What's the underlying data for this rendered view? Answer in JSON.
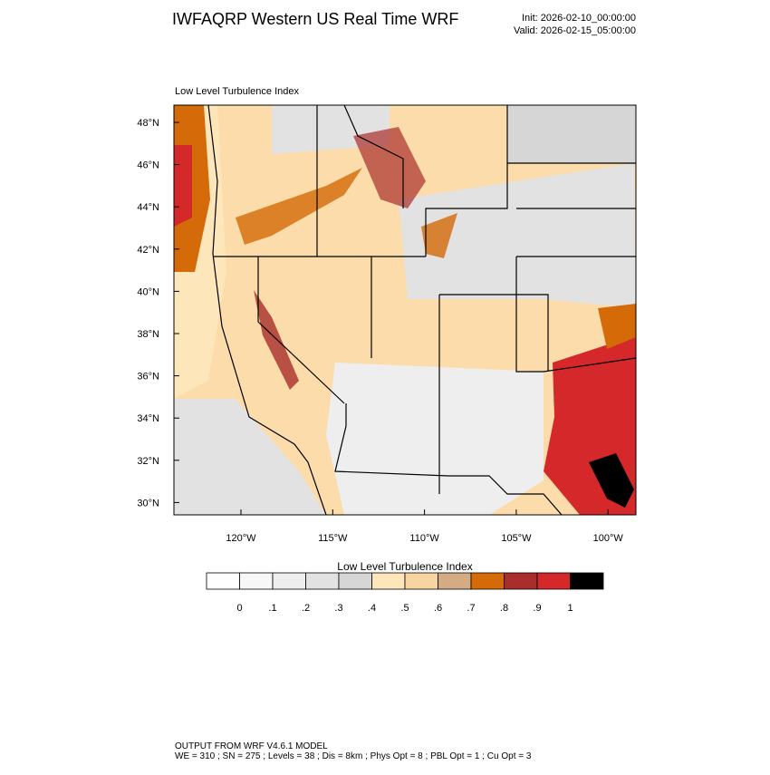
{
  "header": {
    "title": "IWFAQRP Western US Real Time WRF",
    "init": "Init: 2026-02-10_00:00:00",
    "valid": "Valid: 2026-02-15_05:00:00"
  },
  "map": {
    "subtitle": "Low Level Turbulence Index",
    "lat_labels": [
      "48°N",
      "46°N",
      "44°N",
      "42°N",
      "40°N",
      "38°N",
      "36°N",
      "34°N",
      "32°N",
      "30°N"
    ],
    "lon_labels": [
      "120°W",
      "115°W",
      "110°W",
      "105°W",
      "100°W"
    ]
  },
  "colorbar": {
    "title": "Low Level Turbulence Index",
    "colors": [
      "#ffffff",
      "#f7f7f7",
      "#eeeeee",
      "#e2e2e2",
      "#d6d6d6",
      "#fde6ba",
      "#f7d4a2",
      "#d3ac84",
      "#d46a08",
      "#a92d2b",
      "#d4282a",
      "#000000"
    ],
    "labels": [
      "0",
      ".1",
      ".2",
      ".3",
      ".4",
      ".5",
      ".6",
      ".7",
      ".8",
      ".9",
      "1"
    ]
  },
  "footer": {
    "line1": "OUTPUT FROM WRF V4.6.1 MODEL",
    "line2": "WE = 310 ; SN = 275 ; Levels = 38 ; Dis = 8km ; Phys Opt = 8 ; PBL Opt = 1 ; Cu Opt = 3"
  }
}
